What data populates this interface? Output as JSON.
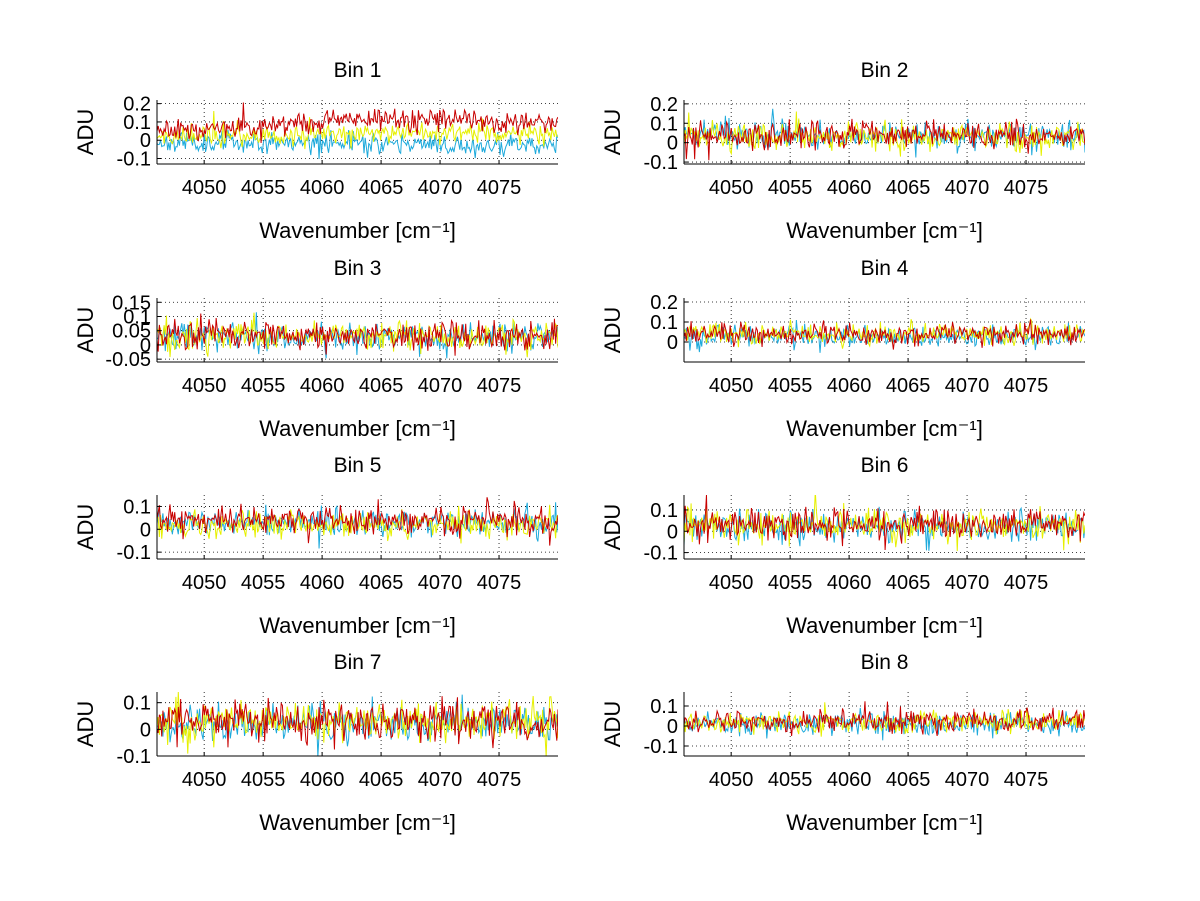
{
  "figure": {
    "background": "#ffffff"
  },
  "series_colors": [
    "#1eaadc",
    "#e6f000",
    "#c80000"
  ],
  "chart_data": [
    {
      "type": "line",
      "title": "Bin 1",
      "xlabel": "Wavenumber [cm⁻¹]",
      "ylabel": "ADU",
      "xlim": [
        4046,
        4080
      ],
      "ylim": [
        -0.13,
        0.22
      ],
      "xticks": [
        4050,
        4055,
        4060,
        4065,
        4070,
        4075
      ],
      "yticks": [
        -0.1,
        0,
        0.1,
        0.2
      ],
      "ytick_labels": [
        "-0.1",
        "0",
        "0.1",
        "0.2"
      ],
      "grid": true,
      "n_points": 340,
      "seed": 11,
      "series": [
        {
          "color": "#1eaadc",
          "knots": [
            [
              4046,
              -0.01
            ],
            [
              4060,
              -0.01
            ],
            [
              4072,
              -0.03
            ],
            [
              4080,
              -0.02
            ]
          ],
          "noise": 0.028
        },
        {
          "color": "#e6f000",
          "knots": [
            [
              4046,
              0.02
            ],
            [
              4060,
              0.03
            ],
            [
              4068,
              0.05
            ],
            [
              4080,
              0.03
            ]
          ],
          "noise": 0.028
        },
        {
          "color": "#c80000",
          "knots": [
            [
              4046,
              0.05
            ],
            [
              4055,
              0.07
            ],
            [
              4063,
              0.12
            ],
            [
              4070,
              0.12
            ],
            [
              4080,
              0.08
            ]
          ],
          "noise": 0.03
        }
      ]
    },
    {
      "type": "line",
      "title": "Bin 2",
      "xlabel": "Wavenumber [cm⁻¹]",
      "ylabel": "ADU",
      "xlim": [
        4046,
        4080
      ],
      "ylim": [
        -0.11,
        0.22
      ],
      "xticks": [
        4050,
        4055,
        4060,
        4065,
        4070,
        4075
      ],
      "yticks": [
        -0.1,
        0,
        0.1,
        0.2
      ],
      "ytick_labels": [
        "-0.1",
        "0",
        "0.1",
        "0.2"
      ],
      "grid": true,
      "n_points": 340,
      "seed": 22,
      "series": [
        {
          "color": "#1eaadc",
          "knots": [
            [
              4046,
              0.04
            ],
            [
              4080,
              0.03
            ]
          ],
          "noise": 0.035
        },
        {
          "color": "#e6f000",
          "knots": [
            [
              4046,
              0.03
            ],
            [
              4080,
              0.03
            ]
          ],
          "noise": 0.035
        },
        {
          "color": "#c80000",
          "knots": [
            [
              4046,
              0.04
            ],
            [
              4080,
              0.04
            ]
          ],
          "noise": 0.035
        }
      ]
    },
    {
      "type": "line",
      "title": "Bin 3",
      "xlabel": "Wavenumber [cm⁻¹]",
      "ylabel": "ADU",
      "xlim": [
        4046,
        4080
      ],
      "ylim": [
        -0.06,
        0.165
      ],
      "xticks": [
        4050,
        4055,
        4060,
        4065,
        4070,
        4075
      ],
      "yticks": [
        -0.05,
        0,
        0.05,
        0.1,
        0.15
      ],
      "ytick_labels": [
        "-0.05",
        "0",
        "0.05",
        "0.1",
        "0.15"
      ],
      "grid": true,
      "n_points": 340,
      "seed": 33,
      "series": [
        {
          "color": "#1eaadc",
          "knots": [
            [
              4046,
              0.03
            ],
            [
              4080,
              0.03
            ]
          ],
          "noise": 0.025
        },
        {
          "color": "#e6f000",
          "knots": [
            [
              4046,
              0.03
            ],
            [
              4080,
              0.03
            ]
          ],
          "noise": 0.025
        },
        {
          "color": "#c80000",
          "knots": [
            [
              4046,
              0.035
            ],
            [
              4080,
              0.035
            ]
          ],
          "noise": 0.025
        }
      ]
    },
    {
      "type": "line",
      "title": "Bin 4",
      "xlabel": "Wavenumber [cm⁻¹]",
      "ylabel": "ADU",
      "xlim": [
        4046,
        4080
      ],
      "ylim": [
        -0.1,
        0.22
      ],
      "xticks": [
        4050,
        4055,
        4060,
        4065,
        4070,
        4075
      ],
      "yticks": [
        0,
        0.1,
        0.2
      ],
      "ytick_labels": [
        "0",
        "0.1",
        "0.2"
      ],
      "grid": true,
      "n_points": 340,
      "seed": 44,
      "series": [
        {
          "color": "#1eaadc",
          "knots": [
            [
              4046,
              0.03
            ],
            [
              4080,
              0.03
            ]
          ],
          "noise": 0.028
        },
        {
          "color": "#e6f000",
          "knots": [
            [
              4046,
              0.04
            ],
            [
              4080,
              0.04
            ]
          ],
          "noise": 0.028
        },
        {
          "color": "#c80000",
          "knots": [
            [
              4046,
              0.04
            ],
            [
              4080,
              0.04
            ]
          ],
          "noise": 0.028
        }
      ]
    },
    {
      "type": "line",
      "title": "Bin 5",
      "xlabel": "Wavenumber [cm⁻¹]",
      "ylabel": "ADU",
      "xlim": [
        4046,
        4080
      ],
      "ylim": [
        -0.13,
        0.15
      ],
      "xticks": [
        4050,
        4055,
        4060,
        4065,
        4070,
        4075
      ],
      "yticks": [
        -0.1,
        0,
        0.1
      ],
      "ytick_labels": [
        "-0.1",
        "0",
        "0.1"
      ],
      "grid": true,
      "n_points": 340,
      "seed": 55,
      "series": [
        {
          "color": "#1eaadc",
          "knots": [
            [
              4046,
              0.03
            ],
            [
              4080,
              0.03
            ]
          ],
          "noise": 0.03
        },
        {
          "color": "#e6f000",
          "knots": [
            [
              4046,
              0.02
            ],
            [
              4080,
              0.02
            ]
          ],
          "noise": 0.03
        },
        {
          "color": "#c80000",
          "knots": [
            [
              4046,
              0.04
            ],
            [
              4080,
              0.04
            ]
          ],
          "noise": 0.03
        }
      ]
    },
    {
      "type": "line",
      "title": "Bin 6",
      "xlabel": "Wavenumber [cm⁻¹]",
      "ylabel": "ADU",
      "xlim": [
        4046,
        4080
      ],
      "ylim": [
        -0.13,
        0.17
      ],
      "xticks": [
        4050,
        4055,
        4060,
        4065,
        4070,
        4075
      ],
      "yticks": [
        -0.1,
        0,
        0.1
      ],
      "ytick_labels": [
        "-0.1",
        "0",
        "0.1"
      ],
      "grid": true,
      "n_points": 340,
      "seed": 66,
      "series": [
        {
          "color": "#1eaadc",
          "knots": [
            [
              4046,
              0.02
            ],
            [
              4080,
              0.02
            ]
          ],
          "noise": 0.035
        },
        {
          "color": "#e6f000",
          "knots": [
            [
              4046,
              0.03
            ],
            [
              4080,
              0.03
            ]
          ],
          "noise": 0.035
        },
        {
          "color": "#c80000",
          "knots": [
            [
              4046,
              0.03
            ],
            [
              4080,
              0.03
            ]
          ],
          "noise": 0.035
        }
      ]
    },
    {
      "type": "line",
      "title": "Bin 7",
      "xlabel": "Wavenumber [cm⁻¹]",
      "ylabel": "ADU",
      "xlim": [
        4046,
        4080
      ],
      "ylim": [
        -0.1,
        0.14
      ],
      "xticks": [
        4050,
        4055,
        4060,
        4065,
        4070,
        4075
      ],
      "yticks": [
        -0.1,
        0,
        0.1
      ],
      "ytick_labels": [
        "-0.1",
        "0",
        "0.1"
      ],
      "grid": true,
      "n_points": 340,
      "seed": 77,
      "series": [
        {
          "color": "#1eaadc",
          "knots": [
            [
              4046,
              0.02
            ],
            [
              4080,
              0.02
            ]
          ],
          "noise": 0.035
        },
        {
          "color": "#e6f000",
          "knots": [
            [
              4046,
              0.03
            ],
            [
              4080,
              0.03
            ]
          ],
          "noise": 0.035
        },
        {
          "color": "#c80000",
          "knots": [
            [
              4046,
              0.03
            ],
            [
              4080,
              0.03
            ]
          ],
          "noise": 0.035
        }
      ]
    },
    {
      "type": "line",
      "title": "Bin 8",
      "xlabel": "Wavenumber [cm⁻¹]",
      "ylabel": "ADU",
      "xlim": [
        4046,
        4080
      ],
      "ylim": [
        -0.15,
        0.17
      ],
      "xticks": [
        4050,
        4055,
        4060,
        4065,
        4070,
        4075
      ],
      "yticks": [
        -0.1,
        0,
        0.1
      ],
      "ytick_labels": [
        "-0.1",
        "0",
        "0.1"
      ],
      "grid": true,
      "n_points": 340,
      "seed": 88,
      "series": [
        {
          "color": "#1eaadc",
          "knots": [
            [
              4046,
              0.01
            ],
            [
              4080,
              0.01
            ]
          ],
          "noise": 0.028
        },
        {
          "color": "#e6f000",
          "knots": [
            [
              4046,
              0.02
            ],
            [
              4080,
              0.02
            ]
          ],
          "noise": 0.028
        },
        {
          "color": "#c80000",
          "knots": [
            [
              4046,
              0.02
            ],
            [
              4080,
              0.02
            ]
          ],
          "noise": 0.028
        }
      ]
    }
  ]
}
